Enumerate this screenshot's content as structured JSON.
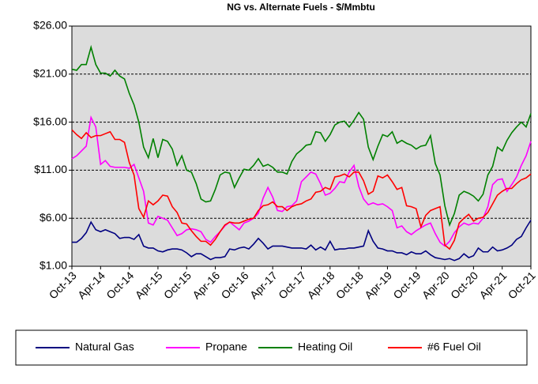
{
  "chart_data": {
    "type": "line",
    "title": "NG vs. Alternate Fuels - $/Mmbtu",
    "categories": [
      "Oct-13",
      null,
      null,
      null,
      null,
      null,
      "Apr-14",
      null,
      null,
      null,
      null,
      null,
      "Oct-14",
      null,
      null,
      null,
      null,
      null,
      "Apr-15",
      null,
      null,
      null,
      null,
      null,
      "Oct-15",
      null,
      null,
      null,
      null,
      null,
      "Apr-16",
      null,
      null,
      null,
      null,
      null,
      "Oct-16",
      null,
      null,
      null,
      null,
      null,
      "Apr-17",
      null,
      null,
      null,
      null,
      null,
      "Oct-17",
      null,
      null,
      null,
      null,
      null,
      "Apr-18",
      null,
      null,
      null,
      null,
      null,
      "Oct-18",
      null,
      null,
      null,
      null,
      null,
      "Apr-19",
      null,
      null,
      null,
      null,
      null,
      "Oct-19",
      null,
      null,
      null,
      null,
      null,
      "Apr-20",
      null,
      null,
      null,
      null,
      null,
      "Oct-20",
      null,
      null,
      null,
      null,
      null,
      "Apr-21",
      null,
      null,
      null,
      null,
      null,
      "Oct-21"
    ],
    "series": [
      {
        "name": "Natural Gas",
        "color": "#000080",
        "values": [
          3.5,
          3.5,
          3.9,
          4.5,
          5.6,
          4.8,
          4.6,
          4.8,
          4.6,
          4.4,
          3.9,
          4.0,
          4.0,
          3.8,
          4.3,
          3.1,
          2.9,
          2.9,
          2.6,
          2.5,
          2.7,
          2.8,
          2.8,
          2.7,
          2.4,
          2.0,
          2.3,
          2.3,
          2.0,
          1.7,
          1.9,
          1.9,
          2.0,
          2.8,
          2.7,
          2.9,
          3.0,
          2.8,
          3.3,
          3.9,
          3.4,
          2.8,
          3.1,
          3.1,
          3.1,
          3.0,
          2.9,
          2.9,
          2.9,
          2.8,
          3.2,
          2.7,
          3.0,
          2.7,
          3.6,
          2.7,
          2.8,
          2.8,
          2.9,
          2.9,
          3.0,
          3.1,
          4.7,
          3.6,
          2.9,
          2.8,
          2.6,
          2.6,
          2.4,
          2.4,
          2.2,
          2.5,
          2.3,
          2.3,
          2.6,
          2.2,
          1.9,
          1.8,
          1.7,
          1.8,
          1.6,
          1.8,
          2.3,
          1.9,
          2.1,
          2.9,
          2.5,
          2.5,
          3.0,
          2.6,
          2.7,
          2.9,
          3.2,
          3.8,
          4.1,
          5.0,
          5.8
        ]
      },
      {
        "name": "Propane",
        "color": "#ff00ff",
        "values": [
          12.2,
          12.5,
          13.0,
          13.5,
          16.5,
          15.5,
          11.6,
          12.0,
          11.4,
          11.3,
          11.3,
          11.3,
          11.2,
          11.6,
          10.2,
          8.8,
          5.5,
          5.3,
          6.2,
          6.0,
          5.8,
          5.0,
          4.2,
          4.4,
          4.8,
          4.9,
          4.8,
          4.6,
          3.8,
          3.5,
          4.1,
          4.6,
          5.2,
          5.6,
          5.2,
          4.8,
          5.5,
          5.7,
          6.0,
          6.5,
          8.1,
          9.2,
          8.2,
          6.8,
          6.7,
          7.2,
          7.3,
          7.8,
          9.8,
          10.3,
          10.8,
          10.6,
          9.6,
          8.4,
          8.6,
          9.1,
          9.8,
          9.7,
          10.8,
          11.5,
          9.3,
          8.0,
          7.4,
          7.6,
          7.4,
          7.5,
          7.2,
          6.8,
          5.0,
          5.2,
          4.6,
          4.3,
          4.7,
          5.0,
          5.3,
          5.5,
          4.4,
          3.5,
          3.1,
          3.6,
          4.5,
          5.1,
          5.5,
          5.3,
          5.5,
          5.4,
          6.0,
          7.2,
          9.5,
          10.0,
          10.1,
          8.8,
          9.5,
          10.3,
          11.5,
          12.5,
          14.0
        ]
      },
      {
        "name": "Heating Oil",
        "color": "#008000",
        "values": [
          21.5,
          21.4,
          22.0,
          22.0,
          23.8,
          22.0,
          21.1,
          21.1,
          20.8,
          21.4,
          20.8,
          20.5,
          19.0,
          17.8,
          16.0,
          13.4,
          12.3,
          14.3,
          12.3,
          14.2,
          14.0,
          13.2,
          11.5,
          12.5,
          11.0,
          10.8,
          9.6,
          8.0,
          7.7,
          7.8,
          9.0,
          10.5,
          10.8,
          10.7,
          9.2,
          10.2,
          11.1,
          11.0,
          11.5,
          12.2,
          11.4,
          11.6,
          11.3,
          10.8,
          10.8,
          10.6,
          11.9,
          12.7,
          13.1,
          13.6,
          13.7,
          15.0,
          14.9,
          14.0,
          14.7,
          15.7,
          16.0,
          16.1,
          15.5,
          16.2,
          17.0,
          16.3,
          13.4,
          12.1,
          13.5,
          14.7,
          14.5,
          15.0,
          13.8,
          14.1,
          13.8,
          13.6,
          13.2,
          13.5,
          13.6,
          14.6,
          11.7,
          10.5,
          7.3,
          5.3,
          6.5,
          8.4,
          8.8,
          8.6,
          8.3,
          7.8,
          8.5,
          10.5,
          11.4,
          13.4,
          13.0,
          14.1,
          14.9,
          15.5,
          16.0,
          15.5,
          16.9
        ]
      },
      {
        "name": "#6 Fuel Oil",
        "color": "#ff0000",
        "values": [
          15.2,
          14.7,
          14.3,
          14.9,
          14.4,
          14.6,
          14.6,
          14.8,
          15.0,
          14.2,
          14.2,
          13.9,
          11.8,
          10.5,
          7.0,
          6.1,
          7.8,
          7.4,
          7.8,
          8.4,
          8.3,
          7.2,
          6.6,
          5.5,
          5.4,
          4.7,
          4.1,
          3.6,
          3.6,
          3.2,
          3.8,
          4.6,
          5.3,
          5.6,
          5.5,
          5.5,
          5.7,
          5.9,
          6.0,
          6.8,
          7.3,
          7.4,
          7.7,
          7.2,
          7.2,
          6.8,
          7.2,
          7.4,
          7.5,
          7.8,
          8.0,
          8.7,
          8.8,
          9.2,
          9.0,
          10.3,
          10.4,
          10.6,
          10.3,
          10.8,
          10.8,
          9.9,
          8.5,
          8.8,
          10.4,
          10.2,
          10.5,
          9.8,
          9.0,
          9.2,
          7.3,
          7.2,
          7.0,
          5.1,
          6.3,
          6.8,
          7.0,
          7.2,
          3.2,
          2.8,
          3.7,
          5.5,
          6.0,
          6.4,
          5.7,
          6.0,
          6.1,
          6.6,
          7.5,
          8.4,
          8.8,
          9.1,
          9.1,
          9.6,
          10.0,
          10.2,
          10.6
        ]
      }
    ],
    "ylim": [
      1,
      26
    ],
    "yticks": [
      {
        "value": 1,
        "label": "$1.00"
      },
      {
        "value": 6,
        "label": "$6.00"
      },
      {
        "value": 11,
        "label": "$11.00"
      },
      {
        "value": 16,
        "label": "$16.00"
      },
      {
        "value": 21,
        "label": "$21.00"
      },
      {
        "value": 26,
        "label": "$26.00"
      }
    ],
    "grid": true,
    "legend": "bottom"
  }
}
